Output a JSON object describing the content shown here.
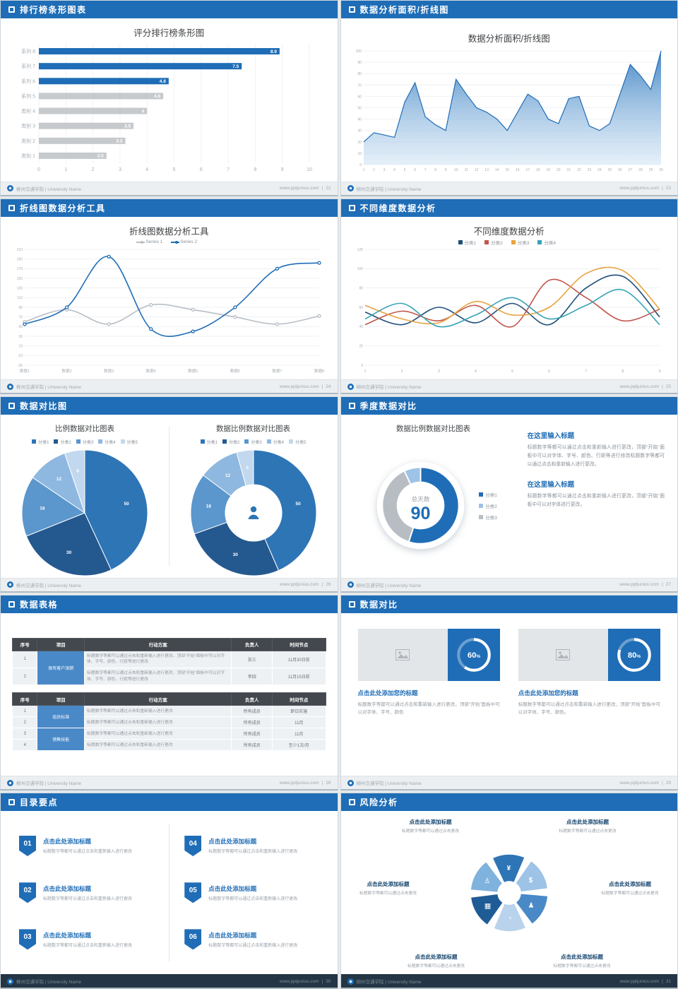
{
  "page": {
    "footer_org": "柳州交通学院 | University Name",
    "footer_site": "www.pptjunius.com",
    "footer_sep": "|"
  },
  "slides": [
    {
      "title": "排行榜条形图表",
      "page_no": "22",
      "chart": {
        "type": "hbar",
        "title": "评分排行榜条形图",
        "categories": [
          "系列 8",
          "系列 7",
          "系列 6",
          "系列 5",
          "类别 4",
          "类别 3",
          "类别 2",
          "类别 1"
        ],
        "values": [
          8.9,
          7.5,
          4.8,
          4.6,
          4,
          3.5,
          3.2,
          2.5
        ],
        "highlight_count": 3,
        "xticks": [
          0,
          1,
          2,
          3,
          4,
          5,
          6,
          7,
          8,
          9,
          10
        ],
        "xmax": 10,
        "bar_color": "#1f6db6",
        "muted_color": "#c6cacd"
      }
    },
    {
      "title": "数据分析面积/折线图",
      "page_no": "23",
      "chart": {
        "type": "area",
        "title": "数据分析面积/折线图",
        "x_labels": [
          1,
          2,
          3,
          4,
          5,
          6,
          7,
          8,
          9,
          10,
          11,
          12,
          13,
          14,
          15,
          16,
          17,
          18,
          19,
          20,
          21,
          22,
          23,
          24,
          25,
          26,
          27,
          28,
          29,
          30
        ],
        "values": [
          20,
          28,
          26,
          24,
          55,
          72,
          42,
          35,
          30,
          75,
          62,
          50,
          46,
          40,
          30,
          46,
          62,
          56,
          40,
          36,
          58,
          60,
          34,
          30,
          36,
          62,
          88,
          78,
          66,
          100
        ],
        "yticks": [
          0,
          10,
          20,
          30,
          40,
          50,
          60,
          70,
          80,
          90,
          100
        ],
        "ymax": 100,
        "line_color": "#1f6db6",
        "fill_from": "#3f83c4",
        "fill_to": "#cfe3f4"
      }
    },
    {
      "title": "折线图数据分析工具",
      "page_no": "24",
      "chart": {
        "type": "lines",
        "title": "折线图数据分析工具",
        "legend_style": "line",
        "markers": true,
        "categories": [
          "数据1",
          "数据2",
          "数据3",
          "数据4",
          "数据5",
          "数据6",
          "数据7",
          "数据8"
        ],
        "yticks": [
          210,
          190,
          170,
          150,
          130,
          110,
          90,
          70,
          50,
          30,
          10,
          -10,
          -30
        ],
        "ymin": -30,
        "ymax": 210,
        "series": [
          {
            "name": "Series 1",
            "color": "#b9bfc5",
            "values": [
              60,
              85,
              55,
              95,
              85,
              70,
              55,
              72
            ]
          },
          {
            "name": "Series 2",
            "color": "#1f6db6",
            "values": [
              55,
              90,
              195,
              45,
              40,
              90,
              170,
              182
            ]
          }
        ]
      }
    },
    {
      "title": "不同维度数据分析",
      "page_no": "25",
      "chart": {
        "type": "lines",
        "title": "不同维度数据分析",
        "legend_style": "square",
        "markers": false,
        "categories": [
          "1",
          "2",
          "3",
          "4",
          "5",
          "6",
          "7",
          "8",
          "9"
        ],
        "yticks": [
          0,
          20,
          40,
          60,
          80,
          100,
          120
        ],
        "ymin": 0,
        "ymax": 120,
        "series": [
          {
            "name": "分类1",
            "color": "#1f4e79",
            "values": [
              55,
              42,
              60,
              44,
              64,
              42,
              80,
              92,
              50
            ]
          },
          {
            "name": "分类2",
            "color": "#c1554c",
            "values": [
              42,
              56,
              46,
              62,
              40,
              88,
              70,
              46,
              58
            ]
          },
          {
            "name": "分类3",
            "color": "#e8a33d",
            "values": [
              62,
              48,
              44,
              66,
              52,
              60,
              95,
              98,
              58
            ]
          },
          {
            "name": "分类4",
            "color": "#35a3b5",
            "values": [
              48,
              64,
              40,
              52,
              70,
              48,
              62,
              78,
              42
            ]
          }
        ]
      }
    },
    {
      "title": "数据对比图",
      "page_no": "26",
      "left_chart": {
        "type": "pie",
        "title": "比例数据对比图表",
        "donut": false,
        "labels": [
          "分类1",
          "分类2",
          "分类3",
          "分类4",
          "分类5"
        ],
        "values": [
          50,
          30,
          18,
          12,
          6
        ],
        "colors": [
          "#2e75b6",
          "#24598f",
          "#5b96cc",
          "#8fb8e0",
          "#c2d8ee"
        ]
      },
      "right_chart": {
        "type": "pie",
        "title": "数据比例数据对比图表",
        "donut": true,
        "center_icon": "person",
        "labels": [
          "分类1",
          "分类2",
          "分类3",
          "分类4",
          "分类5"
        ],
        "values": [
          50,
          30,
          18,
          12,
          5
        ],
        "colors": [
          "#2e75b6",
          "#24598f",
          "#5b96cc",
          "#8fb8e0",
          "#c2d8ee"
        ]
      }
    },
    {
      "title": "季度数据对比",
      "page_no": "27",
      "chart": {
        "type": "donut90",
        "title": "数据比例数据对比图表",
        "center_label": "总天数",
        "center_value": "90",
        "segments": [
          {
            "color": "#1f6db6",
            "value": 55
          },
          {
            "color": "#b7bdc3",
            "value": 38
          },
          {
            "color": "#9dc3e6",
            "value": 7
          }
        ],
        "legend": [
          {
            "label": "分类1",
            "color": "#1f6db6"
          },
          {
            "label": "分类2",
            "color": "#9dc3e6"
          },
          {
            "label": "分类3",
            "color": "#b7bdc3"
          }
        ]
      },
      "blocks": [
        {
          "heading": "在这里输入标题",
          "body": "标题数字等都可以通过点击和重新输入进行更改，顶部“开始”面板中可以对字体、字号、颜色、行距等进行修改标题数字等都可以通过点击和重新输入进行更改。"
        },
        {
          "heading": "在这里输入标题",
          "body": "标题数字等都可以通过点击和重新输入进行更改，顶部“开始”面板中可以对字体进行更改。"
        }
      ]
    },
    {
      "title": "数据表格",
      "page_no": "28",
      "table1": {
        "headers": [
          "序号",
          "项目",
          "行动方案",
          "负责人",
          "时间节点"
        ],
        "widths": [
          "8%",
          "15%",
          "47%",
          "13%",
          "17%"
        ],
        "rows": [
          [
            {
              "t": "1"
            },
            {
              "t": "保有客户深耕",
              "rs": 2,
              "c": "proj"
            },
            {
              "t": "标题数字等都可以通过点击和重新输入进行更改，顶部“开始”面板中可以对字体、字号、颜色、行距等进行更改",
              "c": "plan"
            },
            {
              "t": "张三"
            },
            {
              "t": "11月30日前"
            }
          ],
          [
            {
              "t": "2"
            },
            {
              "t": "标题数字等都可以通过点击和重新输入进行更改，顶部“开始”面板中可以对字体、字号、颜色、行距等进行更改",
              "c": "plan"
            },
            {
              "t": "李四"
            },
            {
              "t": "11月15日前"
            }
          ]
        ]
      },
      "table2": {
        "headers": [
          "序号",
          "项目",
          "行动方案",
          "负责人",
          "时间节点"
        ],
        "widths": [
          "8%",
          "15%",
          "47%",
          "13%",
          "17%"
        ],
        "rows": [
          [
            {
              "t": "1"
            },
            {
              "t": "组员标准",
              "rs": 2,
              "c": "proj"
            },
            {
              "t": "标题数字等都可以通过点击和重新输入进行更改",
              "c": "plan"
            },
            {
              "t": "所有成员"
            },
            {
              "t": "即日实施"
            }
          ],
          [
            {
              "t": "2"
            },
            {
              "t": "标题数字等都可以通过点击和重新输入进行更改",
              "c": "plan"
            },
            {
              "t": "所有成员"
            },
            {
              "t": "11月"
            }
          ],
          [
            {
              "t": "3"
            },
            {
              "t": "销售技能",
              "rs": 2,
              "c": "proj"
            },
            {
              "t": "标题数字等都可以通过点击和重新输入进行更改",
              "c": "plan"
            },
            {
              "t": "所有成员"
            },
            {
              "t": "11月"
            }
          ],
          [
            {
              "t": "4"
            },
            {
              "t": "标题数字等都可以通过点击和重新输入进行更改",
              "c": "plan"
            },
            {
              "t": "所有成员"
            },
            {
              "t": "至少1次/月"
            }
          ]
        ]
      }
    },
    {
      "title": "数据对比",
      "page_no": "29",
      "cards": [
        {
          "percent": 60,
          "value": "60",
          "suffix": "%",
          "heading": "点击此处添加您的标题",
          "body": "标题数字等都可以通过点击和重新输入进行更改，顶部“开始”面板中可以对字体、字号、颜色"
        },
        {
          "percent": 80,
          "value": "80",
          "suffix": "%",
          "heading": "点击此处添加您的标题",
          "body": "标题数字等都可以通过点击和重新输入进行更改，顶部“开始”面板中可以对字体、字号、颜色。"
        }
      ]
    },
    {
      "title": "目录要点",
      "page_no": "30",
      "items": [
        {
          "num": "01",
          "heading": "点击此处添加标题",
          "desc": "标题数字等都可以通过点击和重新输入进行更改"
        },
        {
          "num": "02",
          "heading": "点击此处添加标题",
          "desc": "标题数字等都可以通过点击和重新输入进行更改"
        },
        {
          "num": "03",
          "heading": "点击此处添加标题",
          "desc": "标题数字等都可以通过点击和重新输入进行更改"
        },
        {
          "num": "04",
          "heading": "点击此处添加标题",
          "desc": "标题数字等都可以通过点击和重新输入进行更改"
        },
        {
          "num": "05",
          "heading": "点击此处添加标题",
          "desc": "标题数字等都可以通过点击和重新输入进行更改"
        },
        {
          "num": "06",
          "heading": "点击此处添加标题",
          "desc": "标题数字等都可以通过点击和重新输入进行更改"
        }
      ]
    },
    {
      "title": "风险分析",
      "page_no": "31",
      "diagram": {
        "type": "aperture",
        "petal_colors": [
          "#2e75b6",
          "#9dc3e6",
          "#4a89c8",
          "#b9d3ec",
          "#1f5c96",
          "#7fb2dd"
        ],
        "icons": [
          "¥",
          "$",
          "♟",
          "◔",
          "▦",
          "♙"
        ]
      },
      "items": [
        {
          "heading": "点击此处添加标题",
          "desc": "标题数字等都可以通过点击更改"
        },
        {
          "heading": "点击此处添加标题",
          "desc": "标题数字等都可以通过点击更改"
        },
        {
          "heading": "点击此处添加标题",
          "desc": "标题数字等都可以通过点击更改"
        },
        {
          "heading": "点击此处添加标题",
          "desc": "标题数字等都可以通过点击更改"
        },
        {
          "heading": "点击此处添加标题",
          "desc": "标题数字等都可以通过点击更改"
        },
        {
          "heading": "点击此处添加标题",
          "desc": "标题数字等都可以通过点击更改"
        }
      ]
    }
  ]
}
